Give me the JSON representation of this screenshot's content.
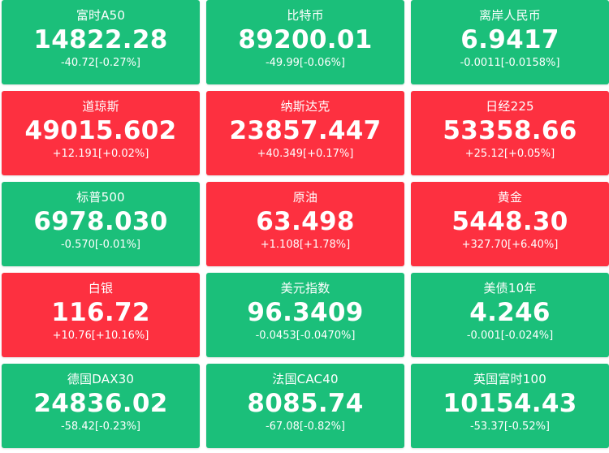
{
  "colors": {
    "up": "#fd3040",
    "down": "#1bbf7a"
  },
  "tiles": [
    {
      "name": "富时A50",
      "price": "14822.28",
      "change": "-40.72[-0.27%]",
      "trend": "down"
    },
    {
      "name": "比特币",
      "price": "89200.01",
      "change": "-49.99[-0.06%]",
      "trend": "down"
    },
    {
      "name": "离岸人民币",
      "price": "6.9417",
      "change": "-0.0011[-0.0158%]",
      "trend": "down"
    },
    {
      "name": "道琼斯",
      "price": "49015.602",
      "change": "+12.191[+0.02%]",
      "trend": "up"
    },
    {
      "name": "纳斯达克",
      "price": "23857.447",
      "change": "+40.349[+0.17%]",
      "trend": "up"
    },
    {
      "name": "日经225",
      "price": "53358.66",
      "change": "+25.12[+0.05%]",
      "trend": "up"
    },
    {
      "name": "标普500",
      "price": "6978.030",
      "change": "-0.570[-0.01%]",
      "trend": "down"
    },
    {
      "name": "原油",
      "price": "63.498",
      "change": "+1.108[+1.78%]",
      "trend": "up"
    },
    {
      "name": "黄金",
      "price": "5448.30",
      "change": "+327.70[+6.40%]",
      "trend": "up"
    },
    {
      "name": "白银",
      "price": "116.72",
      "change": "+10.76[+10.16%]",
      "trend": "up"
    },
    {
      "name": "美元指数",
      "price": "96.3409",
      "change": "-0.0453[-0.0470%]",
      "trend": "down"
    },
    {
      "name": "美债10年",
      "price": "4.246",
      "change": "-0.001[-0.024%]",
      "trend": "down"
    },
    {
      "name": "德国DAX30",
      "price": "24836.02",
      "change": "-58.42[-0.23%]",
      "trend": "down"
    },
    {
      "name": "法国CAC40",
      "price": "8085.74",
      "change": "-67.08[-0.82%]",
      "trend": "down"
    },
    {
      "name": "英国富时100",
      "price": "10154.43",
      "change": "-53.37[-0.52%]",
      "trend": "down"
    }
  ]
}
